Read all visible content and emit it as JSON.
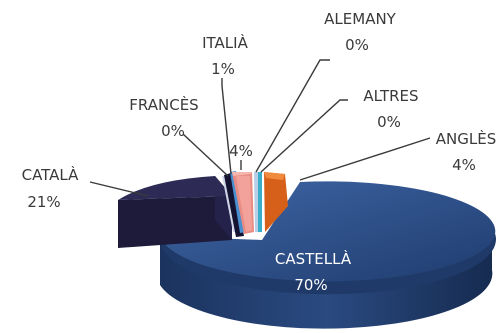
{
  "chart_data": {
    "type": "pie",
    "style": "3d-exploded",
    "slices": [
      {
        "name": "CASTELLÀ",
        "value": 70,
        "label": "70%",
        "color": "#2e4f86"
      },
      {
        "name": "CATALÀ",
        "value": 21,
        "label": "21%",
        "color": "#2d2a55"
      },
      {
        "name": "FRANCÈS",
        "value": 0,
        "label": "0%",
        "color": "#cfd5e6"
      },
      {
        "name": "ITALIÀ",
        "value": 1,
        "label": "1%",
        "color": "#4a8fd0"
      },
      {
        "name": "",
        "value": 4,
        "label": "4%",
        "color": "#f2a29a"
      },
      {
        "name": "ALEMANY",
        "value": 0,
        "label": "0%",
        "color": "#b9cfe8"
      },
      {
        "name": "ALTRES",
        "value": 0,
        "label": "0%",
        "color": "#3aaec9"
      },
      {
        "name": "ANGLÈS",
        "value": 4,
        "label": "4%",
        "color": "#d6601a"
      }
    ],
    "legend": "none"
  }
}
